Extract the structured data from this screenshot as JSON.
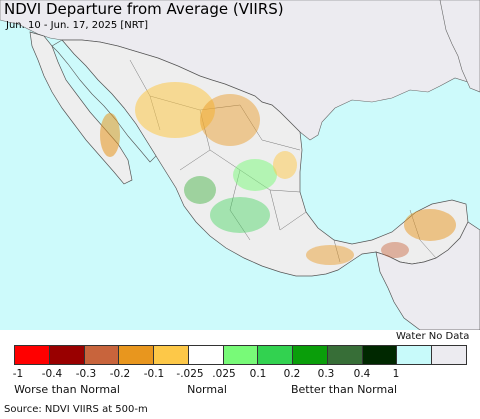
{
  "header": {
    "title": "NDVI Departure from Average (VIIRS)",
    "subtitle": "Jun. 10 - Jun. 17, 2025 [NRT]"
  },
  "colors": {
    "water": "#cdfafb",
    "land_no_data": "#ecebf0",
    "mexico_land": "#eeeeee",
    "border": "#555555"
  },
  "legend": {
    "nodata_label": "Water No Data",
    "swatches": [
      {
        "color": "#ff0000"
      },
      {
        "color": "#990000"
      },
      {
        "color": "#c8643c"
      },
      {
        "color": "#e8961e"
      },
      {
        "color": "#fdc848"
      },
      {
        "color": "#ffffff"
      },
      {
        "color": "#78fa78"
      },
      {
        "color": "#32d250"
      },
      {
        "color": "#0a9e0a"
      },
      {
        "color": "#376e37"
      },
      {
        "color": "#002800"
      },
      {
        "color": "#c8fafa"
      },
      {
        "color": "#ecebf0"
      }
    ],
    "ticks": [
      "-1",
      "-0.4",
      "-0.3",
      "-0.2",
      "-0.1",
      "-.025",
      ".025",
      "0.1",
      "0.2",
      "0.3",
      "0.4",
      "1"
    ],
    "categories": [
      "Worse than Normal",
      "Normal",
      "Better than Normal"
    ]
  },
  "footer": {
    "source": "Source: NDVI VIIRS at 500-m"
  }
}
